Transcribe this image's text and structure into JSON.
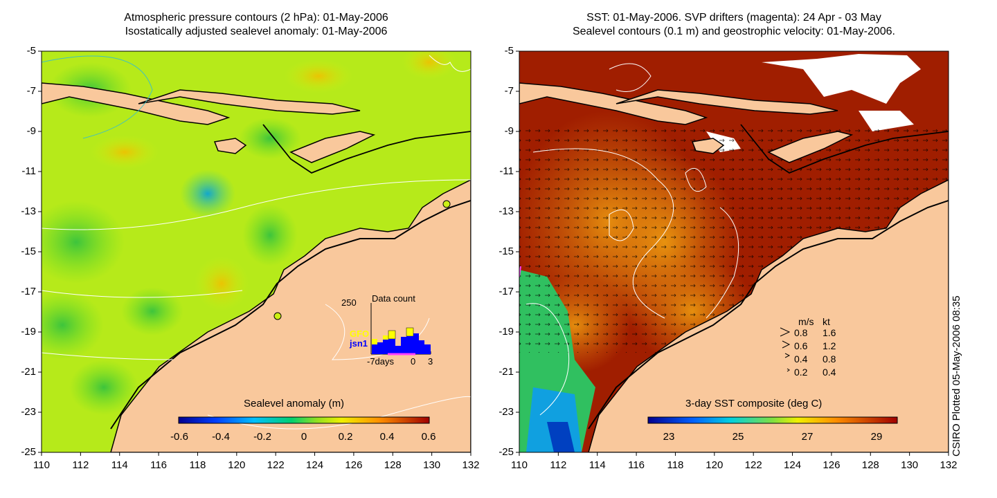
{
  "left_panel": {
    "title_line1": "Atmospheric pressure contours (2 hPa): 01-May-2006",
    "title_line2": "Isostatically adjusted sealevel anomaly: 01-May-2006",
    "colorbar": {
      "label": "Sealevel anomaly (m)",
      "ticks": [
        "-0.6",
        "-0.4",
        "-0.2",
        "0",
        "0.2",
        "0.4",
        "0.6"
      ]
    },
    "inset": {
      "label": "Data count",
      "y_max": "250",
      "x_label": "-7days",
      "x_zero": "0",
      "x_end": "3",
      "series": [
        {
          "name": "GFO",
          "color": "#ffff00"
        },
        {
          "name": "jsn1",
          "color": "#0000ff"
        }
      ]
    }
  },
  "right_panel": {
    "title_line1": "SST: 01-May-2006. SVP drifters (magenta): 24 Apr - 03 May",
    "title_line2": "Sealevel contours (0.1 m) and geostrophic velocity: 01-May-2006.",
    "colorbar": {
      "label": "3-day SST composite (deg C)",
      "ticks": [
        "23",
        "25",
        "27",
        "29"
      ]
    },
    "legend": {
      "header_ms": "m/s",
      "header_kt": "kt",
      "rows": [
        {
          "ms": "0.8",
          "kt": "1.6"
        },
        {
          "ms": "0.6",
          "kt": "1.2"
        },
        {
          "ms": "0.4",
          "kt": "0.8"
        },
        {
          "ms": "0.2",
          "kt": "0.4"
        }
      ]
    }
  },
  "axes": {
    "y_ticks": [
      "-5",
      "-7",
      "-9",
      "-11",
      "-13",
      "-15",
      "-17",
      "-19",
      "-21",
      "-23",
      "-25"
    ],
    "x_ticks": [
      "110",
      "112",
      "114",
      "116",
      "118",
      "120",
      "122",
      "124",
      "126",
      "128",
      "130",
      "132"
    ]
  },
  "credit": "CSIRO Plotted 05-May-2006 08:35",
  "colors": {
    "land": "#f9c89c",
    "ocean_green": "#66dd22",
    "ocean_yellow": "#ccf014",
    "sst_dark": "#a01e00",
    "sst_orange": "#e07a10"
  }
}
